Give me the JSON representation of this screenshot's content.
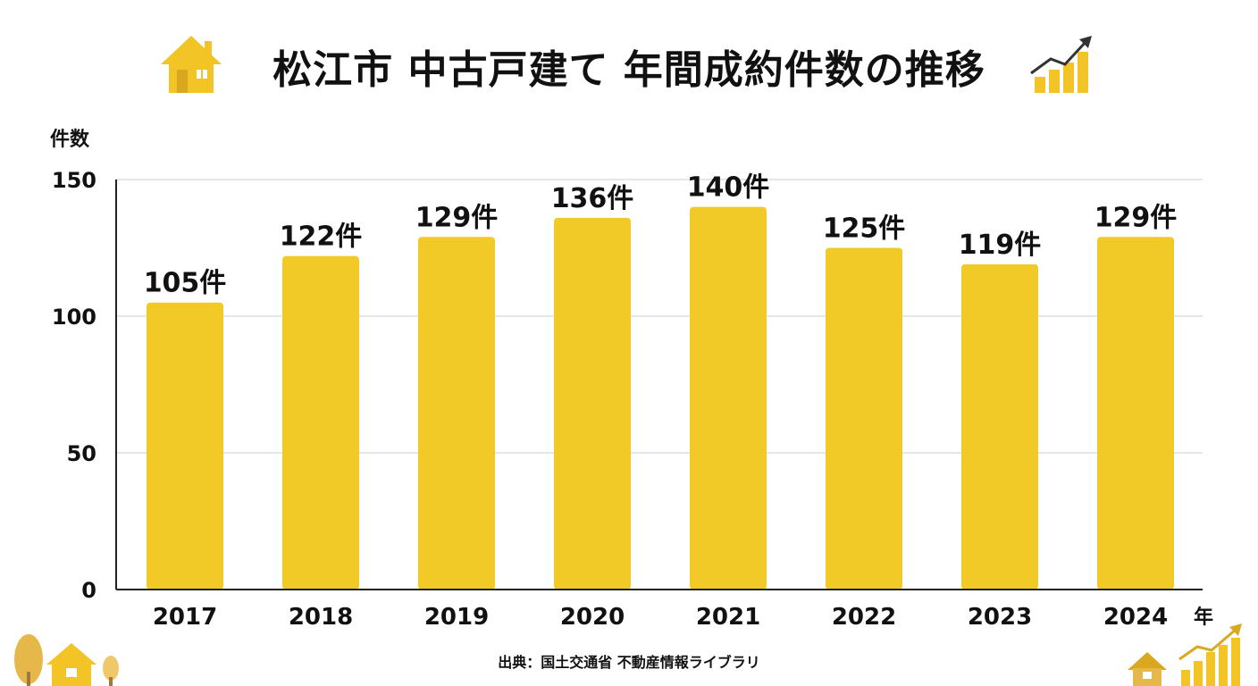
{
  "title": "松江市 中古戸建て 年間成約件数の推移",
  "source": "出典：国土交通省 不動産情報ライブラリ",
  "icons": {
    "title_left": "house-icon",
    "title_right": "rising-bar-chart-icon",
    "bottom_left": "tree-and-house-icon",
    "bottom_right": "house-and-rising-chart-icon"
  },
  "colors": {
    "bar": "#F2CA27",
    "icon": "#F2C425",
    "grid": "#cccccc",
    "axis": "#222222"
  },
  "chart_data": {
    "type": "bar",
    "title": "松江市 中古戸建て 年間成約件数の推移",
    "ylabel": "件数",
    "xlabel": "年",
    "categories": [
      "2017",
      "2018",
      "2019",
      "2020",
      "2021",
      "2022",
      "2023",
      "2024"
    ],
    "values": [
      105,
      122,
      129,
      136,
      140,
      125,
      119,
      129
    ],
    "data_labels": [
      "105件",
      "122件",
      "129件",
      "136件",
      "140件",
      "125件",
      "119件",
      "129件"
    ],
    "ylim": [
      0,
      150
    ],
    "yticks": [
      0,
      50,
      100,
      150
    ],
    "ytick_labels": [
      "0",
      "50",
      "100",
      "150"
    ],
    "grid": true,
    "legend": "none"
  }
}
